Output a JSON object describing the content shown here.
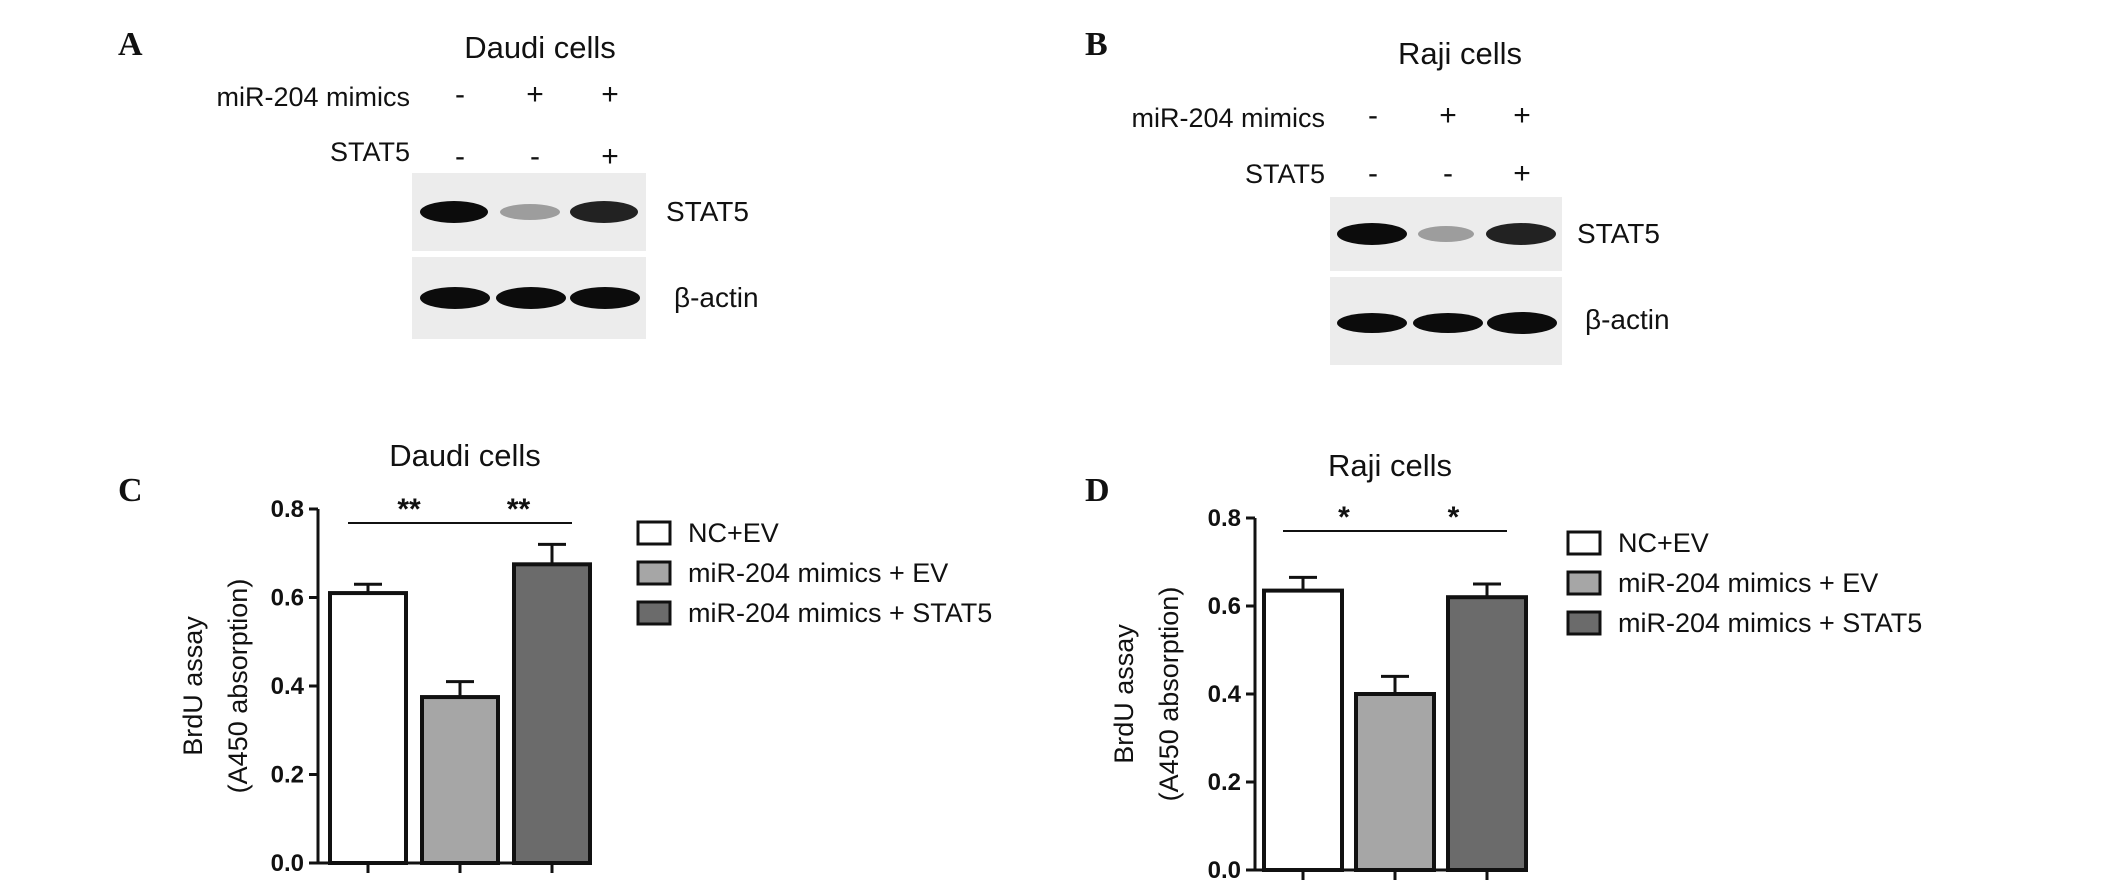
{
  "panels": {
    "a": {
      "letter": "A",
      "title": "Daudi cells",
      "row1_label": "miR-204 mimics",
      "row1_signs": [
        "-",
        "+",
        "+"
      ],
      "row2_label": "STAT5",
      "row2_signs": [
        "-",
        "-",
        "+"
      ],
      "blot1_label": "STAT5",
      "blot1_intensity": [
        1.0,
        0.35,
        0.9
      ],
      "blot2_label": "β-actin",
      "blot2_intensity": [
        1.0,
        1.0,
        1.0
      ]
    },
    "b": {
      "letter": "B",
      "title": "Raji cells",
      "row1_label": "miR-204 mimics",
      "row1_signs": [
        "-",
        "+",
        "+"
      ],
      "row2_label": "STAT5",
      "row2_signs": [
        "-",
        "-",
        "+"
      ],
      "blot1_label": "STAT5",
      "blot1_intensity": [
        1.0,
        0.35,
        0.9
      ],
      "blot2_label": "β-actin",
      "blot2_intensity": [
        1.0,
        1.0,
        1.0
      ]
    },
    "c": {
      "letter": "C"
    },
    "d": {
      "letter": "D"
    }
  },
  "colors": {
    "series": [
      "#ffffff",
      "#a6a6a6",
      "#6b6b6b"
    ],
    "axis": "#111111",
    "band": "#0c0c0c",
    "blot_bg": "#ececec"
  },
  "chart_data": [
    {
      "type": "bar",
      "title": "Daudi cells",
      "ylabel_line1": "BrdU assay",
      "ylabel_line2": "(A450 absorption)",
      "ylim": [
        0,
        0.8
      ],
      "yticks": [
        "0.0",
        "0.2",
        "0.4",
        "0.6",
        "0.8"
      ],
      "legend_position": "right",
      "series": [
        {
          "name": "NC+EV",
          "value": 0.61,
          "error": 0.02
        },
        {
          "name": "miR-204 mimics + EV",
          "value": 0.375,
          "error": 0.035
        },
        {
          "name": "miR-204 mimics + STAT5",
          "value": 0.675,
          "error": 0.045
        }
      ],
      "significance": [
        {
          "from": 0,
          "to": 1,
          "label": "**"
        },
        {
          "from": 1,
          "to": 2,
          "label": "**"
        }
      ]
    },
    {
      "type": "bar",
      "title": "Raji cells",
      "ylabel_line1": "BrdU assay",
      "ylabel_line2": "(A450 absorption)",
      "ylim": [
        0,
        0.8
      ],
      "yticks": [
        "0.0",
        "0.2",
        "0.4",
        "0.6",
        "0.8"
      ],
      "legend_position": "right",
      "series": [
        {
          "name": "NC+EV",
          "value": 0.635,
          "error": 0.03
        },
        {
          "name": "miR-204 mimics + EV",
          "value": 0.4,
          "error": 0.04
        },
        {
          "name": "miR-204 mimics + STAT5",
          "value": 0.62,
          "error": 0.03
        }
      ],
      "significance": [
        {
          "from": 0,
          "to": 1,
          "label": "*"
        },
        {
          "from": 1,
          "to": 2,
          "label": "*"
        }
      ]
    }
  ]
}
